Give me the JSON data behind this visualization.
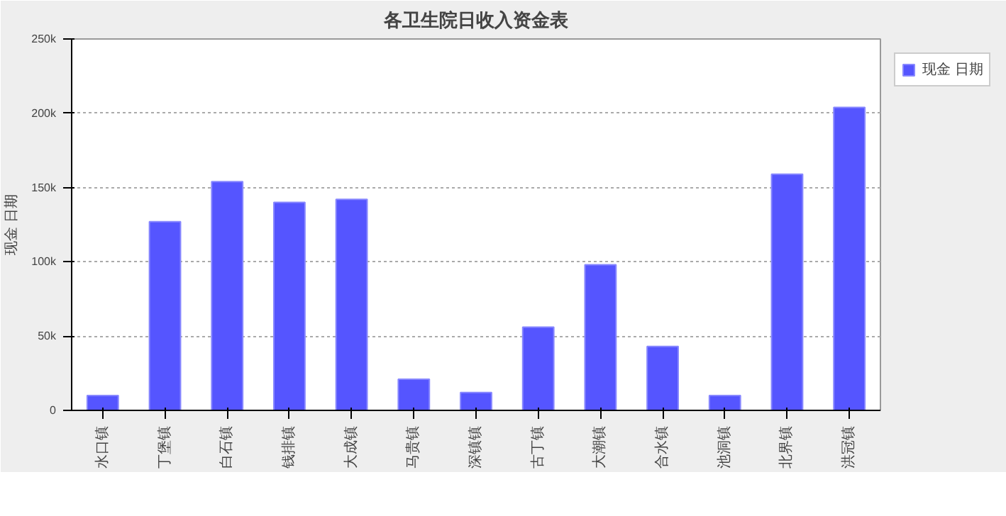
{
  "chart_data": {
    "type": "bar",
    "title": "各卫生院日收入资金表",
    "ylabel": "现金 日期",
    "categories": [
      "水口镇",
      "丁堡镇",
      "白石镇",
      "钱排镇",
      "大成镇",
      "马贵镇",
      "深镇镇",
      "古丁镇",
      "大潮镇",
      "合水镇",
      "池洞镇",
      "北界镇",
      "洪冠镇"
    ],
    "series": [
      {
        "name": "现金 日期",
        "color": "#5555ff",
        "values": [
          10000,
          127000,
          154000,
          140000,
          142000,
          21000,
          12000,
          56000,
          98000,
          43000,
          10000,
          159000,
          204000
        ]
      }
    ],
    "ylim": [
      0,
      250000
    ],
    "yticks": [
      {
        "value": 0,
        "label": "0"
      },
      {
        "value": 50000,
        "label": "50k"
      },
      {
        "value": 100000,
        "label": "100k"
      },
      {
        "value": 150000,
        "label": "150k"
      },
      {
        "value": 200000,
        "label": "200k"
      },
      {
        "value": 250000,
        "label": "250k"
      }
    ],
    "grid": "y",
    "legend": "top right"
  }
}
